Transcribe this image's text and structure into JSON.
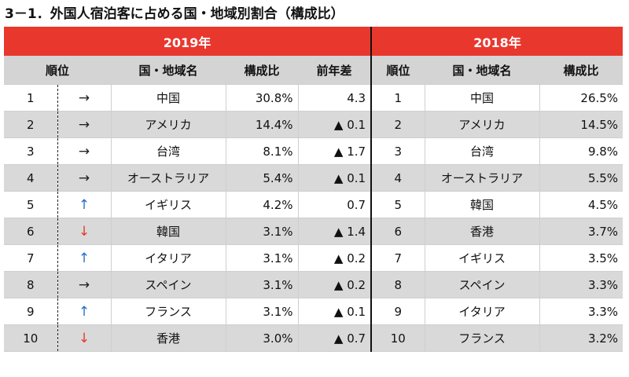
{
  "title": "3－1．外国人宿泊客に占める国・地域別割合（構成比）",
  "colors": {
    "header_red": "#e8382e",
    "arrow_up": "#2b6fc8",
    "arrow_down": "#e8382e",
    "row_shade": "#d9d9d9"
  },
  "year_2019": {
    "label": "2019年",
    "headers": {
      "rank": "順位",
      "country": "国・地域名",
      "share": "構成比",
      "diff": "前年差"
    },
    "rows": [
      {
        "rank": "1",
        "arrow": "→",
        "trend": "flat",
        "country": "中国",
        "share": "30.8%",
        "diff": "4.3"
      },
      {
        "rank": "2",
        "arrow": "→",
        "trend": "flat",
        "country": "アメリカ",
        "share": "14.4%",
        "diff": "▲ 0.1"
      },
      {
        "rank": "3",
        "arrow": "→",
        "trend": "flat",
        "country": "台湾",
        "share": "8.1%",
        "diff": "▲ 1.7"
      },
      {
        "rank": "4",
        "arrow": "→",
        "trend": "flat",
        "country": "オーストラリア",
        "share": "5.4%",
        "diff": "▲ 0.1"
      },
      {
        "rank": "5",
        "arrow": "↑",
        "trend": "up",
        "country": "イギリス",
        "share": "4.2%",
        "diff": "0.7"
      },
      {
        "rank": "6",
        "arrow": "↓",
        "trend": "down",
        "country": "韓国",
        "share": "3.1%",
        "diff": "▲ 1.4"
      },
      {
        "rank": "7",
        "arrow": "↑",
        "trend": "up",
        "country": "イタリア",
        "share": "3.1%",
        "diff": "▲ 0.2"
      },
      {
        "rank": "8",
        "arrow": "→",
        "trend": "flat",
        "country": "スペイン",
        "share": "3.1%",
        "diff": "▲ 0.2"
      },
      {
        "rank": "9",
        "arrow": "↑",
        "trend": "up",
        "country": "フランス",
        "share": "3.1%",
        "diff": "▲ 0.1"
      },
      {
        "rank": "10",
        "arrow": "↓",
        "trend": "down",
        "country": "香港",
        "share": "3.0%",
        "diff": "▲ 0.7"
      }
    ]
  },
  "year_2018": {
    "label": "2018年",
    "headers": {
      "rank": "順位",
      "country": "国・地域名",
      "share": "構成比"
    },
    "rows": [
      {
        "rank": "1",
        "country": "中国",
        "share": "26.5%"
      },
      {
        "rank": "2",
        "country": "アメリカ",
        "share": "14.5%"
      },
      {
        "rank": "3",
        "country": "台湾",
        "share": "9.8%"
      },
      {
        "rank": "4",
        "country": "オーストラリア",
        "share": "5.5%"
      },
      {
        "rank": "5",
        "country": "韓国",
        "share": "4.5%"
      },
      {
        "rank": "6",
        "country": "香港",
        "share": "3.7%"
      },
      {
        "rank": "7",
        "country": "イギリス",
        "share": "3.5%"
      },
      {
        "rank": "8",
        "country": "スペイン",
        "share": "3.3%"
      },
      {
        "rank": "9",
        "country": "イタリア",
        "share": "3.3%"
      },
      {
        "rank": "10",
        "country": "フランス",
        "share": "3.2%"
      }
    ]
  }
}
